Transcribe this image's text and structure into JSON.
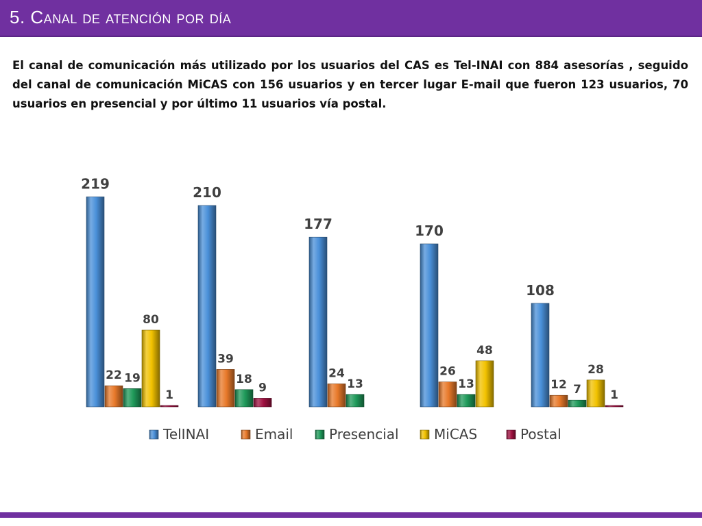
{
  "header": {
    "title": "5. Canal de atención por día"
  },
  "description": "El canal de comunicación más utilizado por los usuarios del CAS es Tel-INAI con 884 asesorías , seguido del canal de comunicación MiCAS con 156 usuarios y en tercer lugar E-mail que fueron 123 usuarios, 70 usuarios  en presencial  y por último 11 usuarios vía postal.",
  "colors": {
    "accent": "#7030a0",
    "TelINAI": "#4a90d9",
    "Email": "#e8792a",
    "Presencial": "#1f9a5a",
    "MiCAS": "#f2c200",
    "Postal": "#a01040"
  },
  "chart_data": {
    "type": "bar",
    "categories": [
      "",
      "",
      "",
      "",
      ""
    ],
    "series": [
      {
        "name": "TelINAI",
        "values": [
          219,
          210,
          177,
          170,
          108
        ]
      },
      {
        "name": "Email",
        "values": [
          22,
          39,
          24,
          26,
          12
        ]
      },
      {
        "name": "Presencial",
        "values": [
          19,
          18,
          13,
          13,
          7
        ]
      },
      {
        "name": "MiCAS",
        "values": [
          80,
          0,
          0,
          48,
          28
        ]
      },
      {
        "name": "Postal",
        "values": [
          1,
          9,
          0,
          0,
          1
        ]
      }
    ],
    "ylim": [
      0,
      240
    ],
    "grid": false,
    "legend": "bottom"
  }
}
